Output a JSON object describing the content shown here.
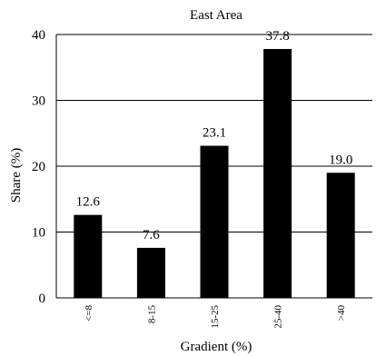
{
  "chart_data": {
    "type": "bar",
    "title": "East Area",
    "xlabel": "Gradient (%)",
    "ylabel": "Share (%)",
    "categories": [
      "<=8",
      "8-15",
      "15-25",
      "25-40",
      ">40"
    ],
    "values": [
      12.6,
      7.6,
      23.1,
      37.8,
      19.0
    ],
    "value_labels": [
      "12.6",
      "7.6",
      "23.1",
      "37.8",
      "19.0"
    ],
    "ylim": [
      0,
      40
    ],
    "yticks": [
      0,
      10,
      20,
      30,
      40
    ],
    "grid": true,
    "bar_color": "#000000",
    "legend": "none"
  }
}
